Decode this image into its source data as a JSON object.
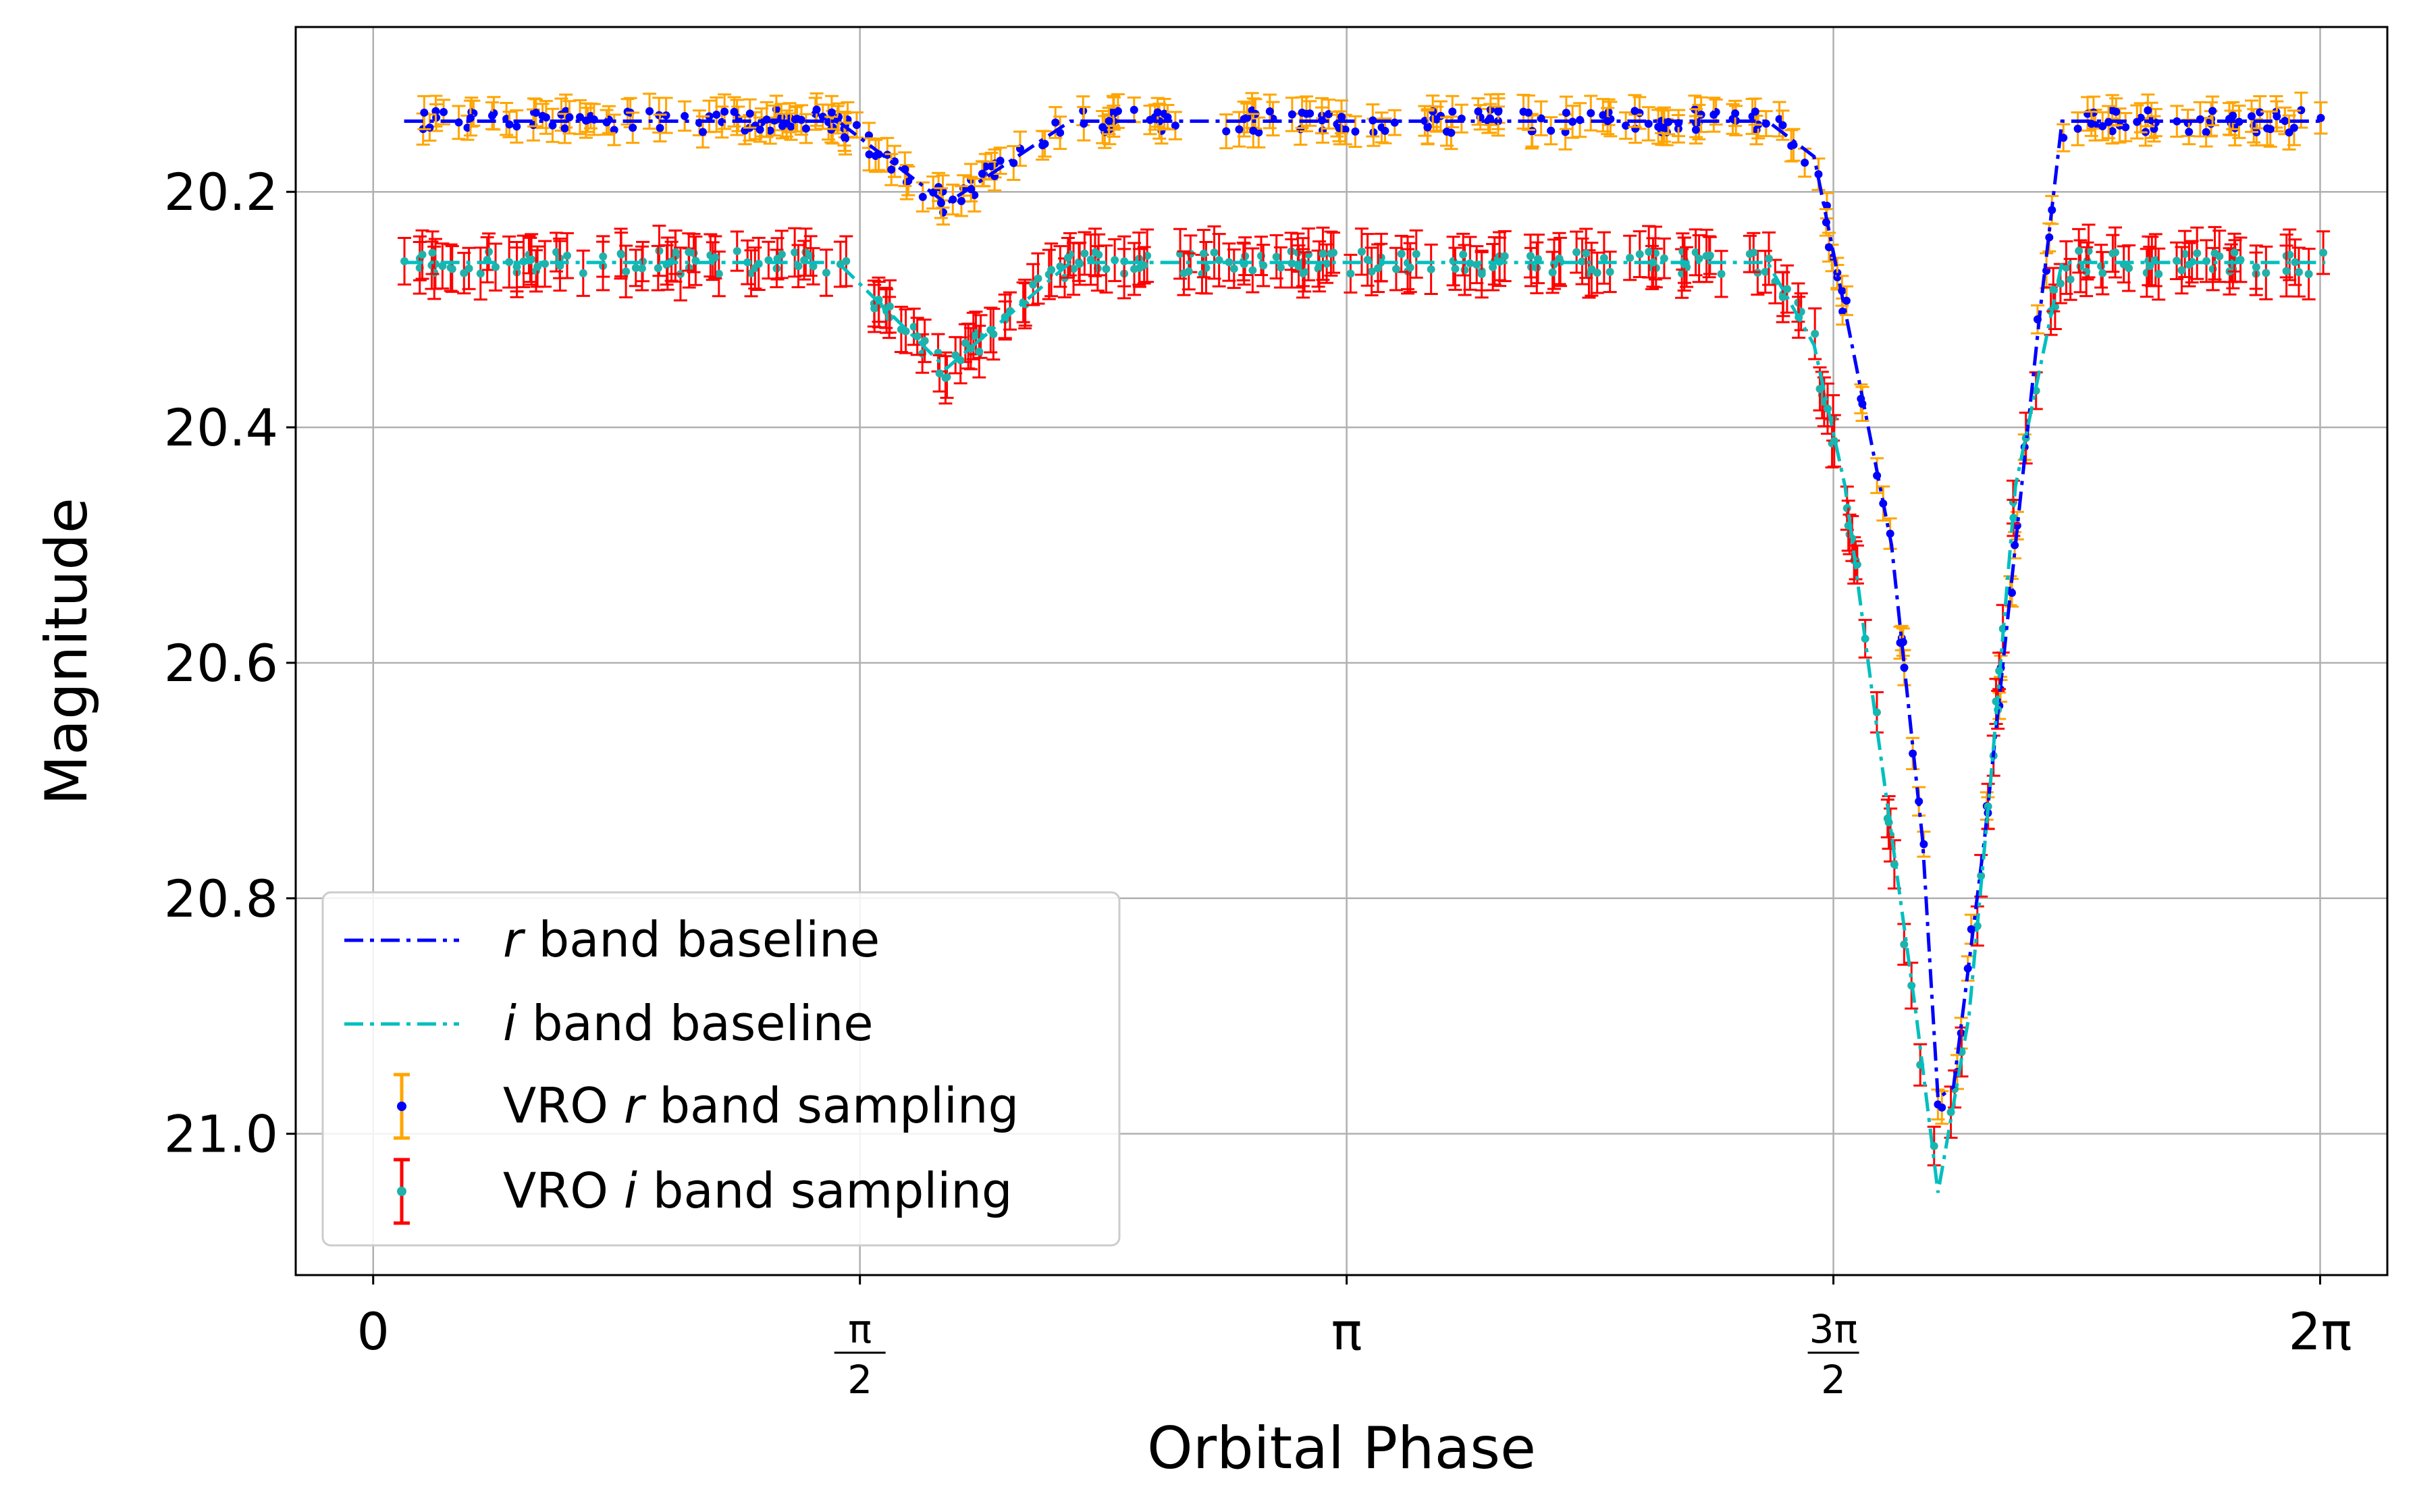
{
  "chart_data": {
    "type": "line",
    "title": "",
    "xlabel": "Orbital Phase",
    "ylabel": "Magnitude",
    "xlim": [
      -0.25,
      6.5
    ],
    "ylim": [
      21.12,
      20.06
    ],
    "y_inverted": true,
    "grid": true,
    "legend_location": "lower-left",
    "x_ticks": [
      {
        "value": 0,
        "label": "0"
      },
      {
        "value": 1.5708,
        "num": "π",
        "den": "2"
      },
      {
        "value": 3.1416,
        "label": "π"
      },
      {
        "value": 4.7124,
        "num": "3π",
        "den": "2"
      },
      {
        "value": 6.2832,
        "label": "2π"
      }
    ],
    "y_ticks": [
      {
        "value": 20.2,
        "label": "20.2"
      },
      {
        "value": 20.4,
        "label": "20.4"
      },
      {
        "value": 20.6,
        "label": "20.6"
      },
      {
        "value": 20.8,
        "label": "20.8"
      },
      {
        "value": 21.0,
        "label": "21.0"
      }
    ],
    "series": [
      {
        "name": "r band baseline",
        "kind": "line",
        "color": "#0000ff",
        "points": [
          [
            0.1,
            20.14
          ],
          [
            1.5,
            20.14
          ],
          [
            1.85,
            20.21
          ],
          [
            2.25,
            20.14
          ],
          [
            4.5,
            20.14
          ],
          [
            4.65,
            20.17
          ],
          [
            4.78,
            20.34
          ],
          [
            4.9,
            20.5
          ],
          [
            5.0,
            20.75
          ],
          [
            5.05,
            20.97
          ],
          [
            5.1,
            20.96
          ],
          [
            5.2,
            20.75
          ],
          [
            5.3,
            20.5
          ],
          [
            5.38,
            20.3
          ],
          [
            5.45,
            20.14
          ],
          [
            6.3,
            20.14
          ]
        ]
      },
      {
        "name": "i band baseline",
        "kind": "line",
        "color": "#00bfbf",
        "points": [
          [
            0.1,
            20.26
          ],
          [
            1.5,
            20.26
          ],
          [
            1.85,
            20.35
          ],
          [
            2.25,
            20.26
          ],
          [
            4.5,
            20.26
          ],
          [
            4.65,
            20.33
          ],
          [
            4.75,
            20.45
          ],
          [
            4.85,
            20.65
          ],
          [
            4.98,
            20.9
          ],
          [
            5.05,
            21.05
          ],
          [
            5.15,
            20.9
          ],
          [
            5.22,
            20.7
          ],
          [
            5.3,
            20.45
          ],
          [
            5.45,
            20.26
          ],
          [
            6.3,
            20.26
          ]
        ]
      },
      {
        "name": "VRO r band sampling",
        "kind": "errorbar",
        "marker_color": "#0000ff",
        "error_color": "#ffa500",
        "error": 0.012
      },
      {
        "name": "VRO i band sampling",
        "kind": "errorbar",
        "marker_color": "#20b2aa",
        "error_color": "#ff0000",
        "error": 0.018
      }
    ]
  },
  "legend": {
    "r_baseline": {
      "italic": "r",
      "rest": " band baseline"
    },
    "i_baseline": {
      "italic": "i",
      "rest": " band baseline"
    },
    "r_sampling": {
      "pre": "VRO ",
      "italic": "r",
      "rest": " band sampling"
    },
    "i_sampling": {
      "pre": "VRO ",
      "italic": "i",
      "rest": " band sampling"
    }
  }
}
